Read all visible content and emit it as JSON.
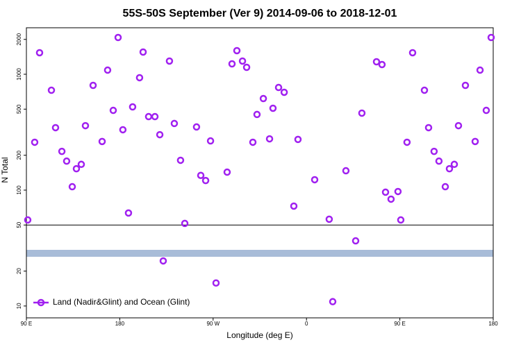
{
  "chart_data": {
    "type": "scatter",
    "title": "55S-50S September (Ver 9)   2014-09-06 to 2018-12-01",
    "x_label": "Longitude (deg E)",
    "y_label": "N Total",
    "xlim": [
      90,
      540
    ],
    "xticks": [
      {
        "value": 90,
        "label": "90 E"
      },
      180,
      {
        "value": 270,
        "label": "90 W"
      },
      {
        "value": 360,
        "label": "0"
      },
      {
        "value": 450,
        "label": "90 E"
      },
      {
        "value": 540,
        "label": "180"
      }
    ],
    "ylim": [
      7.9,
      2520
    ],
    "y_log": true,
    "yticks": [
      10,
      20,
      50,
      100,
      200,
      500,
      1000,
      2000
    ],
    "hline": 50,
    "legend": "bottom-left",
    "series": [
      {
        "name": "Land (Nadir&Glint) and Ocean (Glint)",
        "color": "#a020f0",
        "x": [
          91.3,
          98.0,
          102.7,
          114.1,
          118.1,
          124.2,
          128.8,
          134.2,
          138.2,
          142.9,
          146.9,
          154.3,
          163.0,
          168.3,
          173.7,
          178.4,
          183.0,
          188.4,
          192.4,
          199.1,
          202.5,
          207.8,
          213.9,
          218.6,
          221.9,
          227.9,
          232.6,
          238.6,
          242.7,
          254.0,
          258.1,
          262.8,
          267.5,
          272.8,
          283.5,
          288.2,
          292.9,
          298.3,
          302.3,
          308.3,
          312.3,
          318.4,
          324.4,
          327.7,
          333.1,
          338.5,
          347.8,
          351.8,
          367.9,
          381.9,
          385.3,
          398.0,
          407.4,
          413.4,
          427.5,
          432.8,
          436.2,
          441.5,
          448.2,
          450.9,
          456.9,
          462.3,
          473.7,
          477.7,
          483.0,
          487.7,
          493.8,
          497.8,
          502.5,
          506.5,
          513.2,
          522.6,
          527.3,
          533.3,
          538.0
        ],
        "values": [
          55.3,
          259,
          1534,
          728,
          346,
          216,
          178,
          107,
          153,
          167,
          360,
          802,
          263,
          1086,
          488,
          2077,
          332,
          63.5,
          523,
          934,
          1555,
          431,
          431,
          301,
          24.5,
          1300,
          376,
          181,
          51.6,
          351,
          134,
          121,
          266,
          15.8,
          143,
          1230,
          1599,
          1300,
          1148,
          259,
          450,
          617,
          277,
          509,
          769,
          699,
          72.8,
          274,
          123,
          56.1,
          10.9,
          147,
          36.5,
          462,
          1282,
          1213,
          96,
          83.6,
          97.3,
          55.3,
          259,
          1534,
          728,
          346,
          216,
          178,
          107,
          153,
          167,
          360,
          802,
          263,
          1086,
          488,
          2077
        ]
      }
    ]
  }
}
